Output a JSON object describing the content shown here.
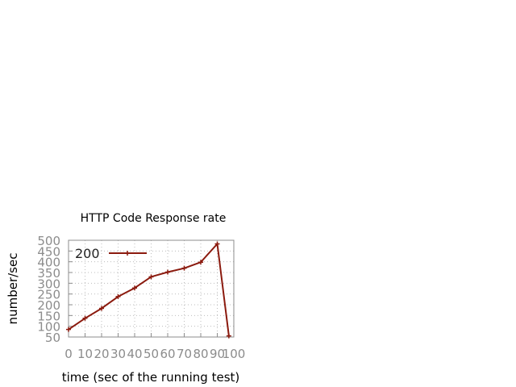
{
  "chart_data": {
    "type": "line",
    "title": "HTTP Code Response rate",
    "xlabel": "time (sec of the running test)",
    "ylabel": "number/sec",
    "xlim": [
      0,
      100
    ],
    "ylim": [
      50,
      500
    ],
    "xticks": [
      0,
      10,
      20,
      30,
      40,
      50,
      60,
      70,
      80,
      90,
      100
    ],
    "yticks": [
      50,
      100,
      150,
      200,
      250,
      300,
      350,
      400,
      450,
      500
    ],
    "grid": true,
    "legend_position": "top-left",
    "series": [
      {
        "name": "200",
        "color": "#8b1a0e",
        "x": [
          0,
          10,
          20,
          30,
          40,
          50,
          60,
          70,
          80,
          90,
          97
        ],
        "y": [
          85,
          137,
          183,
          238,
          278,
          330,
          352,
          370,
          398,
          483,
          55
        ]
      }
    ]
  }
}
